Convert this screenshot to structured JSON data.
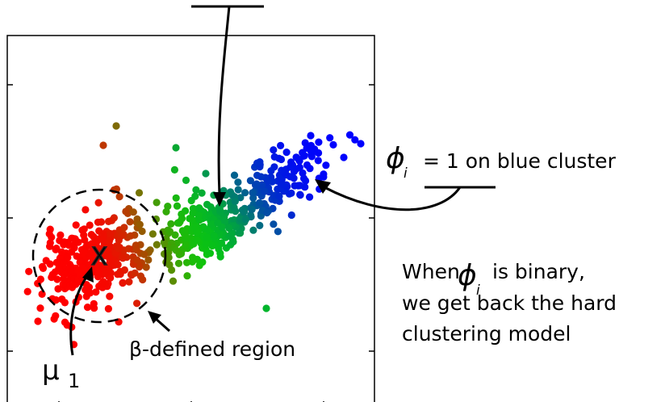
{
  "labels": {
    "phi_symbol": "ϕ",
    "phi_subscript": "i",
    "blue_equation_rest": "= 1 on blue cluster",
    "binary_line1_pre": "When",
    "binary_line1_post": "is binary,",
    "binary_line2": "we get back the hard",
    "binary_line3": "clustering model",
    "region_label": "β-defined region",
    "mu_symbol": "μ",
    "mu_subscript": "1",
    "center_marker": "X"
  },
  "colors": {
    "red_cluster": "#ff0000",
    "green_cluster": "#00e000",
    "blue_cluster": "#0000ff",
    "axes": "#000000"
  }
}
